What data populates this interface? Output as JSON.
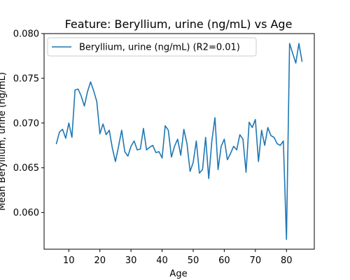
{
  "chart_data": {
    "type": "line",
    "title": "Feature: Beryllium, urine (ng/mL) vs Age",
    "xlabel": "Age",
    "ylabel": "Mean Beryllium, urine (ng/mL)",
    "xlim": [
      2.05,
      88.95
    ],
    "ylim": [
      0.0559,
      0.08
    ],
    "xticks": [
      10,
      20,
      30,
      40,
      50,
      60,
      70,
      80
    ],
    "yticks": [
      0.06,
      0.065,
      0.07,
      0.075,
      0.08
    ],
    "ytick_labels": [
      "0.060",
      "0.065",
      "0.070",
      "0.075",
      "0.080"
    ],
    "grid": false,
    "legend_position": "top-left",
    "series": [
      {
        "name": "Beryllium, urine (ng/mL) (R2=0.01)",
        "color": "#1f77b4",
        "x": [
          6,
          7,
          8,
          9,
          10,
          11,
          12,
          13,
          14,
          15,
          16,
          17,
          18,
          19,
          20,
          21,
          22,
          23,
          24,
          25,
          26,
          27,
          28,
          29,
          30,
          31,
          32,
          33,
          34,
          35,
          36,
          37,
          38,
          39,
          40,
          41,
          42,
          43,
          44,
          45,
          46,
          47,
          48,
          49,
          50,
          51,
          52,
          53,
          54,
          55,
          56,
          57,
          58,
          59,
          60,
          61,
          62,
          63,
          64,
          65,
          66,
          67,
          68,
          69,
          70,
          71,
          72,
          73,
          74,
          75,
          76,
          77,
          78,
          79,
          80,
          81,
          82,
          83,
          84,
          85
        ],
        "y": [
          0.0677,
          0.069,
          0.0693,
          0.0683,
          0.07,
          0.0684,
          0.0737,
          0.0738,
          0.073,
          0.0719,
          0.0735,
          0.0746,
          0.0736,
          0.0724,
          0.0688,
          0.0699,
          0.0687,
          0.0692,
          0.0672,
          0.0657,
          0.0674,
          0.0692,
          0.0668,
          0.0663,
          0.0674,
          0.068,
          0.067,
          0.0671,
          0.0694,
          0.067,
          0.0673,
          0.0675,
          0.0667,
          0.0668,
          0.0661,
          0.0697,
          0.0692,
          0.0662,
          0.0674,
          0.0682,
          0.0664,
          0.0693,
          0.0677,
          0.0646,
          0.0656,
          0.068,
          0.0644,
          0.0648,
          0.0684,
          0.0638,
          0.068,
          0.0706,
          0.0648,
          0.0674,
          0.0682,
          0.0659,
          0.0666,
          0.0674,
          0.067,
          0.0687,
          0.0682,
          0.0645,
          0.0701,
          0.0695,
          0.0704,
          0.0657,
          0.0692,
          0.0675,
          0.0695,
          0.0686,
          0.0684,
          0.0677,
          0.0675,
          0.068,
          0.057,
          0.0789,
          0.0778,
          0.0767,
          0.0789,
          0.0769
        ]
      }
    ]
  }
}
